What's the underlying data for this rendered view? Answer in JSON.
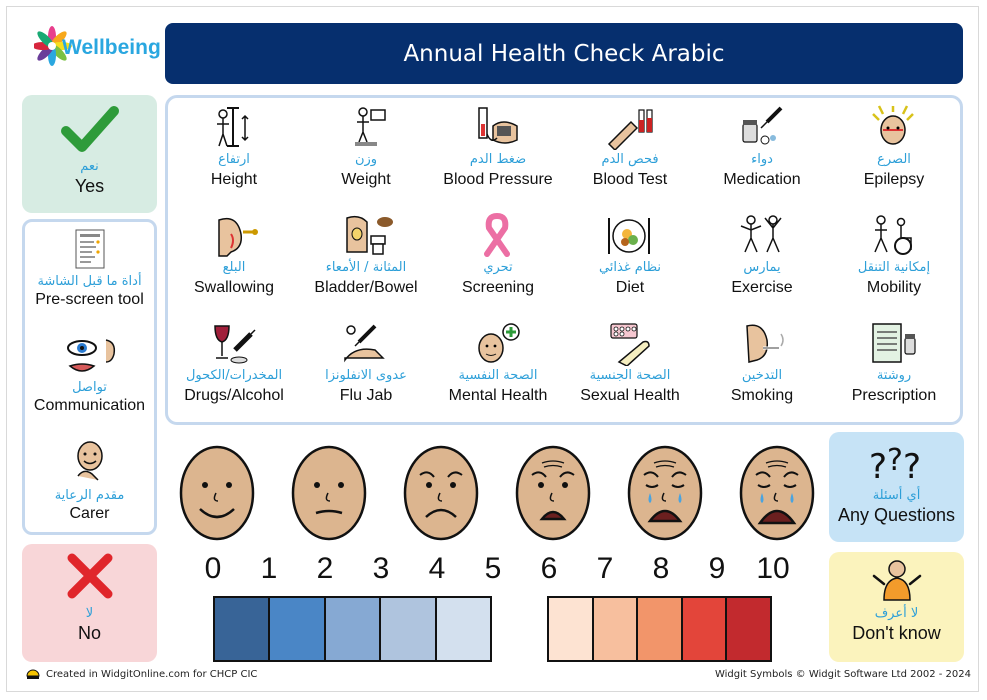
{
  "brand": {
    "logo_text": "Wellbeing"
  },
  "title": "Annual Health Check Arabic",
  "yes": {
    "arabic": "نعم",
    "english": "Yes",
    "color": "#2e9b3a"
  },
  "no": {
    "arabic": "لا",
    "english": "No",
    "color": "#e0262b"
  },
  "left_items": [
    {
      "arabic": "أداة ما قبل الشاشة",
      "english": "Pre-screen tool",
      "icon": "checklist-document-icon"
    },
    {
      "arabic": "تواصل",
      "english": "Communication",
      "icon": "eye-ear-mouth-icon"
    },
    {
      "arabic": "مقدم الرعاية",
      "english": "Carer",
      "icon": "carer-hand-on-heart-icon"
    }
  ],
  "topics": [
    {
      "arabic": "ارتفاع",
      "english": "Height",
      "icon": "height-measure-icon"
    },
    {
      "arabic": "وزن",
      "english": "Weight",
      "icon": "weighing-scale-icon"
    },
    {
      "arabic": "ضغط الدم",
      "english": "Blood Pressure",
      "icon": "blood-pressure-cuff-icon"
    },
    {
      "arabic": "فحص الدم",
      "english": "Blood Test",
      "icon": "blood-test-tubes-icon"
    },
    {
      "arabic": "دواء",
      "english": "Medication",
      "icon": "pills-syringe-icon"
    },
    {
      "arabic": "الصرع",
      "english": "Epilepsy",
      "icon": "epilepsy-head-icon"
    },
    {
      "arabic": "البلع",
      "english": "Swallowing",
      "icon": "swallowing-icon"
    },
    {
      "arabic": "المثانة / الأمعاء",
      "english": "Bladder/Bowel",
      "icon": "bladder-toilet-icon"
    },
    {
      "arabic": "تحري",
      "english": "Screening",
      "icon": "pink-ribbon-icon"
    },
    {
      "arabic": "نظام غذائي",
      "english": "Diet",
      "icon": "plate-cutlery-icon"
    },
    {
      "arabic": "يمارس",
      "english": "Exercise",
      "icon": "exercise-people-icon"
    },
    {
      "arabic": "إمكانية التنقل",
      "english": "Mobility",
      "icon": "walking-wheelchair-icon"
    },
    {
      "arabic": "المخدرات/الكحول",
      "english": "Drugs/Alcohol",
      "icon": "wine-syringe-icon"
    },
    {
      "arabic": "عدوى الانفلونزا",
      "english": "Flu Jab",
      "icon": "injection-arm-icon"
    },
    {
      "arabic": "الصحة النفسية",
      "english": "Mental Health",
      "icon": "head-thought-icon"
    },
    {
      "arabic": "الصحة الجنسية",
      "english": "Sexual Health",
      "icon": "condom-pills-icon"
    },
    {
      "arabic": "التدخين",
      "english": "Smoking",
      "icon": "smoking-face-icon"
    },
    {
      "arabic": "روشتة",
      "english": "Prescription",
      "icon": "prescription-form-icon"
    }
  ],
  "pain_faces": [
    {
      "level": 0,
      "icon": "face-happy-icon"
    },
    {
      "level": 2,
      "icon": "face-neutral-icon"
    },
    {
      "level": 4,
      "icon": "face-sad-icon"
    },
    {
      "level": 6,
      "icon": "face-upset-icon"
    },
    {
      "level": 8,
      "icon": "face-crying-icon"
    },
    {
      "level": 10,
      "icon": "face-sobbing-icon"
    }
  ],
  "scale_numbers": [
    "0",
    "1",
    "2",
    "3",
    "4",
    "5",
    "6",
    "7",
    "8",
    "9",
    "10"
  ],
  "scale_colors": {
    "cool": [
      "#386497",
      "#4a86c6",
      "#86a9d3",
      "#afc4de",
      "#d3e0ee"
    ],
    "warm": [
      "#fde3d2",
      "#f7bf9e",
      "#f2956a",
      "#e3453a",
      "#c22a2e"
    ]
  },
  "any_questions": {
    "arabic": "أي أسئلة",
    "english": "Any Questions",
    "icon": "question-marks-icon"
  },
  "dont_know": {
    "arabic": "لا أعرف",
    "english": "Don't know",
    "icon": "shrug-person-icon"
  },
  "footer": {
    "left": "Created in WidgitOnline.com for CHCP CIC",
    "right": "Widgit Symbols © Widgit Software Ltd 2002 - 2024"
  }
}
